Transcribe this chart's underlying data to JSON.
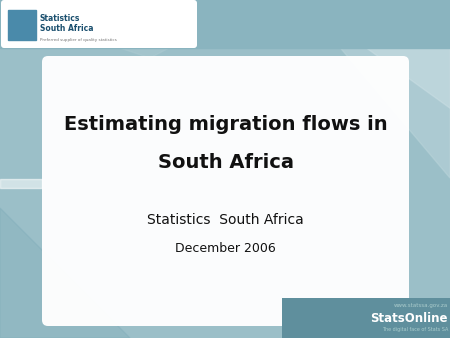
{
  "title_line1": "Estimating migration flows in",
  "title_line2": "South Africa",
  "subtitle_line1": "Statistics  South Africa",
  "subtitle_line2": "December 2006",
  "bg_color": "#9bbfc8",
  "card_color": "#ffffff",
  "title_color": "#111111",
  "subtitle_color": "#111111",
  "footer_bg": "#6a9daa",
  "footer_text1": "www.statssa.gov.za",
  "footer_text2": "StatsOnline",
  "footer_text3": "The digital face of Stats SA",
  "logo_text1": "Statistics",
  "logo_text2": "South Africa",
  "logo_subtext": "Preferred supplier of quality statistics",
  "header_bg": "#8cb5bf",
  "diag1_color": "#b5d0d6",
  "diag2_color": "#c8dfe4",
  "diag3_color": "#7aaab6"
}
